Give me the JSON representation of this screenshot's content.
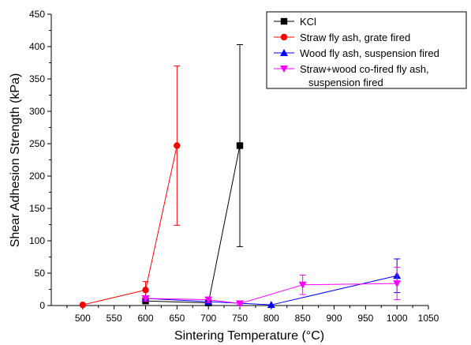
{
  "chart_data": {
    "type": "scatter",
    "xlabel": "Sintering Temperature (°C)",
    "ylabel": "Shear Adhesion Strength (kPa)",
    "xlim": [
      450,
      1050
    ],
    "ylim": [
      0,
      450
    ],
    "xticks": [
      500,
      550,
      600,
      650,
      700,
      750,
      800,
      850,
      900,
      950,
      1000,
      1050
    ],
    "yticks": [
      0,
      50,
      100,
      150,
      200,
      250,
      300,
      350,
      400,
      450
    ],
    "grid": false,
    "legend_position": "top-right",
    "series": [
      {
        "name": "KCl",
        "color": "#000000",
        "marker": "square",
        "x": [
          600,
          700,
          750
        ],
        "y": [
          7,
          4,
          247
        ],
        "err": [
          3,
          2,
          156
        ]
      },
      {
        "name": "Straw fly ash, grate fired",
        "color": "#ff0000",
        "marker": "circle",
        "x": [
          500,
          600,
          650
        ],
        "y": [
          1,
          24,
          247
        ],
        "err": [
          0,
          13,
          123
        ]
      },
      {
        "name": "Wood fly ash, suspension fired",
        "color": "#0000ff",
        "marker": "triangle-up",
        "x": [
          600,
          700,
          800,
          1000
        ],
        "y": [
          11,
          6,
          1,
          46
        ],
        "err": [
          3,
          3,
          0,
          26
        ]
      },
      {
        "name_lines": [
          "Straw+wood co-fired fly ash,",
          "suspension fired"
        ],
        "color": "#ff00ff",
        "marker": "triangle-down",
        "x": [
          600,
          700,
          750,
          850,
          1000
        ],
        "y": [
          11,
          9,
          3,
          32,
          34
        ],
        "err": [
          4,
          4,
          2,
          15,
          25
        ]
      }
    ]
  }
}
